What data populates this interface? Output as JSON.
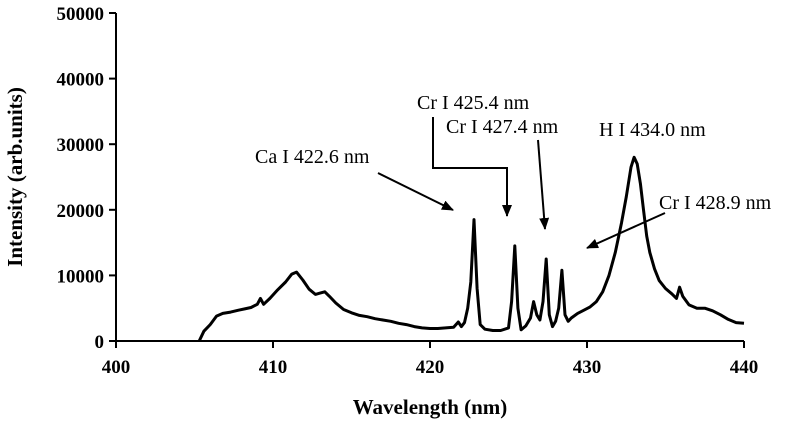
{
  "chart_data": {
    "type": "line",
    "title": "",
    "xlabel": "Wavelength (nm)",
    "ylabel": "Intensity (arb.units)",
    "xlim": [
      400,
      440
    ],
    "ylim": [
      0,
      50000
    ],
    "x_ticks": [
      "400",
      "410",
      "420",
      "430",
      "440"
    ],
    "y_ticks": [
      "0",
      "10000",
      "20000",
      "30000",
      "40000",
      "50000"
    ],
    "grid": false,
    "legend": "none",
    "line_color": "#000000",
    "series": [
      {
        "x": [
          405.3,
          405.6,
          406.0,
          406.4,
          406.8,
          407.3,
          407.8,
          408.2,
          408.6,
          409.0,
          409.2,
          409.4,
          409.8,
          410.3,
          410.8,
          411.2,
          411.5,
          411.9,
          412.3,
          412.7,
          413.0,
          413.3,
          413.6,
          414.0,
          414.5,
          415.0,
          415.5,
          416.0,
          416.5,
          417.0,
          417.5,
          418.0,
          418.5,
          419.0,
          419.5,
          420.0,
          420.5,
          421.0,
          421.5,
          421.8,
          422.0,
          422.2,
          422.4,
          422.6,
          422.8,
          423.0,
          423.2,
          423.5,
          424.0,
          424.5,
          425.0,
          425.2,
          425.4,
          425.6,
          425.8,
          426.1,
          426.4,
          426.6,
          426.8,
          427.0,
          427.2,
          427.4,
          427.6,
          427.8,
          428.0,
          428.2,
          428.4,
          428.6,
          428.8,
          429.0,
          429.4,
          429.8,
          430.2,
          430.6,
          431.0,
          431.4,
          431.8,
          432.2,
          432.5,
          432.8,
          433.0,
          433.2,
          433.4,
          433.6,
          433.8,
          434.0,
          434.3,
          434.6,
          435.0,
          435.4,
          435.7,
          435.9,
          436.1,
          436.5,
          437.0,
          437.5,
          438.0,
          438.5,
          439.0,
          439.5,
          440.0
        ],
        "values": [
          0,
          1500,
          2500,
          3800,
          4200,
          4400,
          4700,
          4900,
          5100,
          5600,
          6500,
          5600,
          6500,
          7800,
          9000,
          10200,
          10500,
          9300,
          7900,
          7100,
          7300,
          7500,
          6800,
          5800,
          4800,
          4300,
          3900,
          3700,
          3400,
          3200,
          3000,
          2700,
          2500,
          2200,
          2000,
          1900,
          1900,
          2000,
          2100,
          2900,
          2200,
          2800,
          5000,
          9000,
          18500,
          8000,
          2500,
          1800,
          1600,
          1600,
          2000,
          6000,
          14500,
          5000,
          1700,
          2300,
          3500,
          6000,
          4000,
          3200,
          6000,
          12500,
          4000,
          2200,
          3000,
          5000,
          10800,
          4000,
          3000,
          3500,
          4200,
          4700,
          5200,
          6000,
          7500,
          10000,
          13500,
          18000,
          22000,
          26500,
          28000,
          27000,
          24000,
          20000,
          16000,
          13500,
          11000,
          9200,
          8000,
          7200,
          6500,
          8200,
          6800,
          5500,
          5000,
          5000,
          4600,
          4000,
          3300,
          2800,
          2700
        ]
      }
    ],
    "annotations": [
      {
        "text": "Ca I 422.6 nm"
      },
      {
        "text": "Cr I 425.4 nm"
      },
      {
        "text": "Cr I 427.4 nm"
      },
      {
        "text": "H I 434.0 nm"
      },
      {
        "text": "Cr I 428.9 nm"
      }
    ]
  }
}
